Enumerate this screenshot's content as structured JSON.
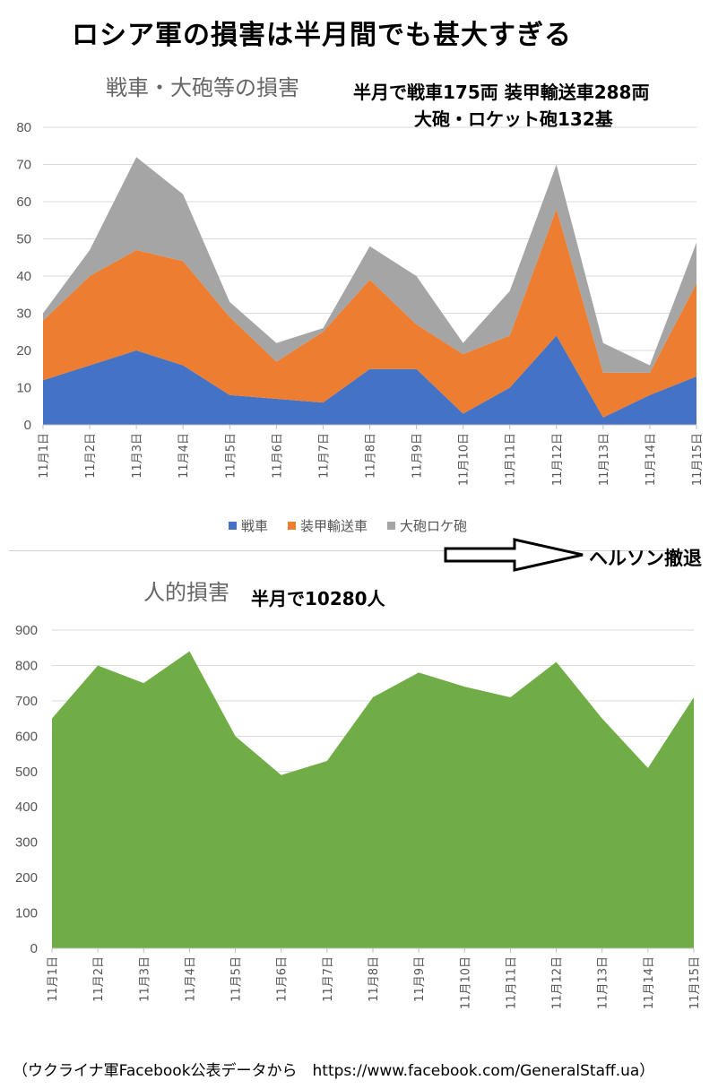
{
  "title": "ロシア軍の損害は半月間でも甚大すぎる",
  "arrow_label": "ヘルソン撤退",
  "source": "（ウクライナ軍Facebook公表データから　https://www.facebook.com/GeneralStaff.ua）",
  "chart_data": [
    {
      "type": "area",
      "stacked": true,
      "title": "戦車・大砲等の損害",
      "annotation_line1": "半月で戦車175両 装甲輸送車288両",
      "annotation_line2": "大砲・ロケット砲132基",
      "categories": [
        "11月1日",
        "11月2日",
        "11月3日",
        "11月4日",
        "11月5日",
        "11月6日",
        "11月7日",
        "11月8日",
        "11月9日",
        "11月10日",
        "11月11日",
        "11月12日",
        "11月13日",
        "11月14日",
        "11月15日"
      ],
      "series": [
        {
          "name": "戦車",
          "color": "#4472c4",
          "values": [
            12,
            16,
            20,
            16,
            8,
            7,
            6,
            15,
            15,
            3,
            10,
            24,
            2,
            8,
            13
          ]
        },
        {
          "name": "装甲輸送車",
          "color": "#ed7d31",
          "values": [
            16,
            24,
            27,
            28,
            21,
            10,
            19,
            24,
            12,
            16,
            14,
            34,
            12,
            6,
            25
          ]
        },
        {
          "name": "大砲ロケ砲",
          "color": "#a5a5a5",
          "values": [
            2,
            7,
            25,
            18,
            4,
            5,
            1,
            9,
            13,
            3,
            12,
            12,
            8,
            2,
            11
          ]
        }
      ],
      "ylim": [
        0,
        80
      ],
      "yticks": [
        0,
        10,
        20,
        30,
        40,
        50,
        60,
        70,
        80
      ],
      "grid": true,
      "legend": "bottom"
    },
    {
      "type": "area",
      "title": "人的損害",
      "annotation_line1": "半月で10280人",
      "categories": [
        "11月1日",
        "11月2日",
        "11月3日",
        "11月4日",
        "11月5日",
        "11月6日",
        "11月7日",
        "11月8日",
        "11月9日",
        "11月10日",
        "11月11日",
        "11月12日",
        "11月13日",
        "11月14日",
        "11月15日"
      ],
      "series": [
        {
          "color": "#70ad47",
          "values": [
            650,
            800,
            750,
            840,
            600,
            490,
            530,
            710,
            780,
            740,
            710,
            810,
            650,
            510,
            710
          ]
        }
      ],
      "ylim": [
        0,
        900
      ],
      "yticks": [
        0,
        100,
        200,
        300,
        400,
        500,
        600,
        700,
        800,
        900
      ],
      "grid": true
    }
  ]
}
